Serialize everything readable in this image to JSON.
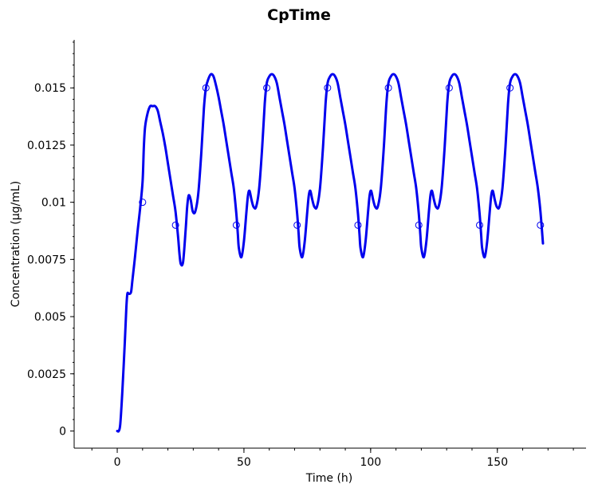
{
  "chart_data": {
    "type": "line",
    "title": "CpTime",
    "xlabel": "Time (h)",
    "ylabel": "Concentration (µg/mL)",
    "xlim": [
      -17,
      185
    ],
    "ylim": [
      -0.00075,
      0.0171
    ],
    "x_ticks": [
      0,
      50,
      100,
      150
    ],
    "x_tick_labels": [
      "0",
      "50",
      "100",
      "150"
    ],
    "y_ticks": [
      0,
      0.0025,
      0.005,
      0.0075,
      0.01,
      0.0125,
      0.015
    ],
    "y_tick_labels": [
      "0",
      "0.0025",
      "0.005",
      "0.0075",
      "0.01",
      "0.0125",
      "0.015"
    ],
    "grid": false,
    "series": [
      {
        "kind": "line",
        "color": "#0000ee",
        "x": [
          0,
          0.6,
          1.2,
          2,
          3,
          3.6,
          4,
          4.5,
          5,
          5.5,
          6,
          7,
          8,
          9,
          10,
          10.5,
          11,
          12,
          13,
          14,
          15,
          16,
          17,
          18,
          19,
          20,
          21,
          22,
          23,
          24,
          24.6,
          25.1,
          26,
          27,
          27.6,
          28.2,
          29,
          29.8,
          30.8,
          32,
          33.2,
          34.2,
          35,
          36,
          37,
          38,
          39,
          40,
          41,
          42,
          43,
          44,
          45,
          46,
          47,
          47.6,
          48,
          49,
          50,
          51,
          51.6,
          52.2,
          53,
          53.8,
          54.8,
          56,
          57.2,
          58.2,
          59,
          60,
          61,
          62,
          63,
          64,
          65,
          66,
          67,
          68,
          69,
          70,
          71,
          71.6,
          72,
          73,
          74,
          75,
          75.6,
          76.2,
          77,
          77.8,
          78.8,
          80,
          81.2,
          82.2,
          83,
          84,
          85,
          86,
          87,
          88,
          89,
          90,
          91,
          92,
          93,
          94,
          95,
          95.6,
          96,
          97,
          98,
          99,
          99.6,
          100.2,
          101,
          101.8,
          102.8,
          104,
          105.2,
          106.2,
          107,
          108,
          109,
          110,
          111,
          112,
          113,
          114,
          115,
          116,
          117,
          118,
          119,
          119.6,
          120,
          121,
          122,
          123,
          123.6,
          124.2,
          125,
          125.8,
          126.8,
          128,
          129.2,
          130.2,
          131,
          132,
          133,
          134,
          135,
          136,
          137,
          138,
          139,
          140,
          141,
          142,
          143,
          143.6,
          144,
          145,
          146,
          147,
          147.6,
          148.2,
          149,
          149.8,
          150.8,
          152,
          153.2,
          154.2,
          155,
          156,
          157,
          158,
          159,
          160,
          161,
          162,
          163,
          164,
          165,
          166,
          167,
          168
        ],
        "y": [
          0,
          0,
          0.0003,
          0.0017,
          0.0039,
          0.0054,
          0.006,
          0.006,
          0.006,
          0.0061,
          0.0066,
          0.0076,
          0.0087,
          0.0097,
          0.0109,
          0.0124,
          0.0133,
          0.0139,
          0.0142,
          0.0142,
          0.0142,
          0.014,
          0.0135,
          0.013,
          0.0124,
          0.0117,
          0.011,
          0.0103,
          0.0096,
          0.0085,
          0.0077,
          0.0073,
          0.0074,
          0.0088,
          0.0098,
          0.0103,
          0.0101,
          0.0096,
          0.0096,
          0.0104,
          0.0122,
          0.0141,
          0.015,
          0.0154,
          0.0156,
          0.0155,
          0.0151,
          0.0146,
          0.014,
          0.0134,
          0.0127,
          0.012,
          0.0113,
          0.0106,
          0.0095,
          0.0086,
          0.008,
          0.0076,
          0.0083,
          0.0096,
          0.0103,
          0.0105,
          0.0101,
          0.0098,
          0.0098,
          0.0106,
          0.0124,
          0.0143,
          0.0152,
          0.0155,
          0.0156,
          0.0155,
          0.0152,
          0.0146,
          0.014,
          0.0134,
          0.0127,
          0.012,
          0.0113,
          0.0106,
          0.0095,
          0.0086,
          0.008,
          0.0076,
          0.0083,
          0.0096,
          0.0103,
          0.0105,
          0.0101,
          0.0098,
          0.0098,
          0.0106,
          0.0124,
          0.0143,
          0.0152,
          0.0155,
          0.0156,
          0.0155,
          0.0152,
          0.0146,
          0.014,
          0.0134,
          0.0127,
          0.012,
          0.0113,
          0.0106,
          0.0095,
          0.0086,
          0.008,
          0.0076,
          0.0083,
          0.0096,
          0.0103,
          0.0105,
          0.0101,
          0.0098,
          0.0098,
          0.0106,
          0.0124,
          0.0143,
          0.0152,
          0.0155,
          0.0156,
          0.0155,
          0.0152,
          0.0146,
          0.014,
          0.0134,
          0.0127,
          0.012,
          0.0113,
          0.0106,
          0.0095,
          0.0086,
          0.008,
          0.0076,
          0.0083,
          0.0096,
          0.0103,
          0.0105,
          0.0101,
          0.0098,
          0.0098,
          0.0106,
          0.0124,
          0.0143,
          0.0152,
          0.0155,
          0.0156,
          0.0155,
          0.0152,
          0.0146,
          0.014,
          0.0134,
          0.0127,
          0.012,
          0.0113,
          0.0106,
          0.0095,
          0.0086,
          0.008,
          0.0076,
          0.0083,
          0.0096,
          0.0103,
          0.0105,
          0.0101,
          0.0098,
          0.0098,
          0.0106,
          0.0124,
          0.0143,
          0.0152,
          0.0155,
          0.0156,
          0.0155,
          0.0152,
          0.0146,
          0.014,
          0.0134,
          0.0127,
          0.012,
          0.0113,
          0.0106,
          0.0096,
          0.0082
        ]
      },
      {
        "kind": "scatter",
        "marker": "open-circle",
        "color": "#0000ee",
        "x": [
          10,
          23,
          35,
          47,
          59,
          71,
          83,
          95,
          107,
          119,
          131,
          143,
          155,
          167
        ],
        "y": [
          0.01,
          0.009,
          0.015,
          0.009,
          0.015,
          0.009,
          0.015,
          0.009,
          0.015,
          0.009,
          0.015,
          0.009,
          0.015,
          0.009
        ]
      }
    ]
  }
}
